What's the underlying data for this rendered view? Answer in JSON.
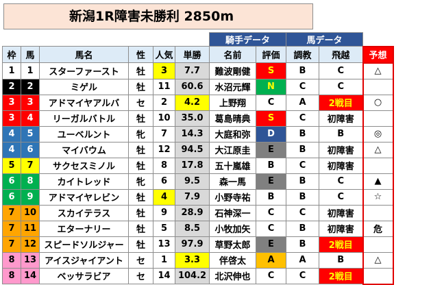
{
  "title": "新潟1R障害未勝利 2850m",
  "group_headers": {
    "jockey": "騎手データ",
    "horse": "馬データ"
  },
  "headers": [
    "枠",
    "馬",
    "馬名",
    "性",
    "人気",
    "単勝",
    "名前",
    "評価",
    "調教",
    "飛越",
    "予想"
  ],
  "colors": {
    "frame": {
      "1": {
        "bg": "#ffffff",
        "fg": "#000000"
      },
      "2": {
        "bg": "#000000",
        "fg": "#ffffff"
      },
      "3": {
        "bg": "#ff0000",
        "fg": "#ffffff"
      },
      "4": {
        "bg": "#2f75b6",
        "fg": "#ffffff"
      },
      "5": {
        "bg": "#ffff00",
        "fg": "#000000"
      },
      "6": {
        "bg": "#00b050",
        "fg": "#ffffff"
      },
      "7": {
        "bg": "#ffa500",
        "fg": "#000000"
      },
      "8": {
        "bg": "#ff99cc",
        "fg": "#000000"
      }
    }
  },
  "rows": [
    {
      "waku": "1",
      "uma": "1",
      "name": "スターファースト",
      "sex": "牡",
      "sex_color": "blue",
      "pop": "3",
      "pop_hl": true,
      "odds": "7.7",
      "jockey": "難波剛健",
      "rating": "S",
      "training": "B",
      "jump": "C",
      "jump_hl": false,
      "yoso": "△"
    },
    {
      "waku": "2",
      "uma": "2",
      "name": "ミゲル",
      "sex": "牡",
      "sex_color": "blue",
      "pop": "11",
      "pop_hl": false,
      "odds": "60.6",
      "jockey": "水沼元輝",
      "rating": "N",
      "training": "C",
      "jump": "C",
      "jump_hl": false,
      "yoso": ""
    },
    {
      "waku": "3",
      "uma": "3",
      "name": "アドマイヤアルバ",
      "sex": "セ",
      "sex_color": "black",
      "pop": "2",
      "pop_hl": false,
      "odds": "4.2",
      "odds_hl": true,
      "jockey": "上野翔",
      "rating": "C",
      "training": "A",
      "jump": "2戦目",
      "jump_hl": true,
      "yoso": "○"
    },
    {
      "waku": "3",
      "uma": "4",
      "name": "リーガルバトル",
      "sex": "牡",
      "sex_color": "blue",
      "pop": "10",
      "pop_hl": false,
      "odds": "35.0",
      "jockey": "葛島晴典",
      "rating": "S",
      "training": "C",
      "jump": "初障害",
      "jump_hl": false,
      "yoso": ""
    },
    {
      "waku": "4",
      "uma": "5",
      "name": "ユーベルント",
      "sex": "牝",
      "sex_color": "red",
      "pop": "7",
      "pop_hl": false,
      "odds": "14.3",
      "jockey": "大庭和弥",
      "rating": "D",
      "training": "B",
      "jump": "B",
      "jump_hl": false,
      "yoso": "◎"
    },
    {
      "waku": "4",
      "uma": "6",
      "name": "マイバウム",
      "sex": "牡",
      "sex_color": "blue",
      "pop": "12",
      "pop_hl": false,
      "odds": "94.5",
      "jockey": "大江原圭",
      "rating": "E",
      "training": "B",
      "jump": "初障害",
      "jump_hl": false,
      "yoso": "△"
    },
    {
      "waku": "5",
      "uma": "7",
      "name": "サクセスミノル",
      "sex": "牡",
      "sex_color": "blue",
      "pop": "8",
      "pop_hl": false,
      "odds": "17.8",
      "jockey": "五十嵐雄",
      "rating": "B",
      "training": "C",
      "jump": "初障害",
      "jump_hl": false,
      "yoso": ""
    },
    {
      "waku": "6",
      "uma": "8",
      "name": "カイトレッド",
      "sex": "牝",
      "sex_color": "red",
      "pop": "6",
      "pop_hl": false,
      "odds": "9.5",
      "jockey": "森一馬",
      "rating": "E",
      "training": "B",
      "jump": "C",
      "jump_hl": false,
      "yoso": "▲"
    },
    {
      "waku": "6",
      "uma": "9",
      "name": "アドマイヤレビン",
      "sex": "牡",
      "sex_color": "blue",
      "pop": "4",
      "pop_hl": true,
      "odds": "7.9",
      "jockey": "小野寺祐",
      "rating": "B",
      "training": "B",
      "jump": "C",
      "jump_hl": false,
      "yoso": "☆"
    },
    {
      "waku": "7",
      "uma": "10",
      "name": "スカイテラス",
      "sex": "牡",
      "sex_color": "blue",
      "pop": "9",
      "pop_hl": false,
      "odds": "28.9",
      "jockey": "石神深一",
      "rating": "C",
      "training": "C",
      "jump": "初障害",
      "jump_hl": false,
      "yoso": ""
    },
    {
      "waku": "7",
      "uma": "11",
      "name": "エターナリー",
      "sex": "牡",
      "sex_color": "blue",
      "pop": "5",
      "pop_hl": false,
      "odds": "8.5",
      "jockey": "小牧加矢",
      "rating": "C",
      "training": "B",
      "jump": "初障害",
      "jump_hl": false,
      "yoso": "危"
    },
    {
      "waku": "7",
      "uma": "12",
      "name": "スピードソルジャー",
      "sex": "牡",
      "sex_color": "blue",
      "pop": "13",
      "pop_hl": false,
      "odds": "97.9",
      "jockey": "草野太郎",
      "rating": "E",
      "training": "B",
      "jump": "2戦目",
      "jump_hl": true,
      "yoso": ""
    },
    {
      "waku": "8",
      "uma": "13",
      "name": "アイスジャイアント",
      "sex": "セ",
      "sex_color": "black",
      "pop": "1",
      "pop_hl": false,
      "odds": "3.3",
      "odds_hl": true,
      "jockey": "伴啓太",
      "rating": "A",
      "training": "A",
      "jump": "B",
      "jump_hl": false,
      "yoso": "△"
    },
    {
      "waku": "8",
      "uma": "14",
      "name": "ベッサラビア",
      "sex": "セ",
      "sex_color": "black",
      "pop": "14",
      "pop_hl": false,
      "odds": "104.2",
      "jockey": "北沢伸也",
      "rating": "C",
      "training": "C",
      "jump": "2戦目",
      "jump_hl": true,
      "yoso": ""
    }
  ]
}
